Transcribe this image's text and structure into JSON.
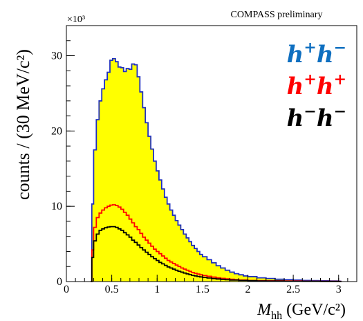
{
  "chart_data": {
    "type": "histogram",
    "preliminary_label": "COMPASS preliminary",
    "ylabel": "counts / (30 MeV/c²)",
    "xlabel_main": "M",
    "xlabel_sub": "hh",
    "xlabel_unit": "(GeV/c²)",
    "y_multiplier": "×10³",
    "xlim": [
      0,
      3.2
    ],
    "ylim": [
      0,
      34
    ],
    "x_ticks": [
      0,
      0.5,
      1,
      1.5,
      2,
      2.5,
      3
    ],
    "x_tick_labels": [
      "0",
      "0.5",
      "1",
      "1.5",
      "2",
      "2.5",
      "3"
    ],
    "y_ticks": [
      0,
      10,
      20,
      30
    ],
    "y_tick_labels": [
      "0",
      "10",
      "20",
      "30"
    ],
    "bin_width_gev": 0.03,
    "fill_color": "#ffff00",
    "series": [
      {
        "name": "h⁺h⁻",
        "color": "#1f2fbf",
        "filled": true,
        "points": [
          [
            0.27,
            0
          ],
          [
            0.28,
            10.3
          ],
          [
            0.3,
            17.5
          ],
          [
            0.33,
            21.5
          ],
          [
            0.36,
            24
          ],
          [
            0.39,
            25.6
          ],
          [
            0.42,
            26.8
          ],
          [
            0.45,
            27.8
          ],
          [
            0.48,
            29.4
          ],
          [
            0.51,
            29.6
          ],
          [
            0.54,
            29.2
          ],
          [
            0.57,
            28.5
          ],
          [
            0.6,
            28.4
          ],
          [
            0.63,
            27.9
          ],
          [
            0.66,
            28.3
          ],
          [
            0.69,
            28.2
          ],
          [
            0.72,
            28.9
          ],
          [
            0.75,
            28.8
          ],
          [
            0.78,
            27.2
          ],
          [
            0.81,
            25.2
          ],
          [
            0.84,
            23.1
          ],
          [
            0.87,
            21.1
          ],
          [
            0.9,
            19.3
          ],
          [
            0.93,
            17.6
          ],
          [
            0.96,
            16
          ],
          [
            0.99,
            14.7
          ],
          [
            1.02,
            13.5
          ],
          [
            1.05,
            12.3
          ],
          [
            1.08,
            11.2
          ],
          [
            1.11,
            10.3
          ],
          [
            1.14,
            9.5
          ],
          [
            1.17,
            8.8
          ],
          [
            1.2,
            8.1
          ],
          [
            1.23,
            7.5
          ],
          [
            1.26,
            6.9
          ],
          [
            1.29,
            6.3
          ],
          [
            1.32,
            5.8
          ],
          [
            1.35,
            5.3
          ],
          [
            1.38,
            4.8
          ],
          [
            1.41,
            4.4
          ],
          [
            1.44,
            4.0
          ],
          [
            1.47,
            3.6
          ],
          [
            1.5,
            3.3
          ],
          [
            1.55,
            2.9
          ],
          [
            1.6,
            2.5
          ],
          [
            1.65,
            2.1
          ],
          [
            1.7,
            1.8
          ],
          [
            1.75,
            1.5
          ],
          [
            1.8,
            1.25
          ],
          [
            1.85,
            1.05
          ],
          [
            1.9,
            0.9
          ],
          [
            1.95,
            0.75
          ],
          [
            2.0,
            0.65
          ],
          [
            2.1,
            0.5
          ],
          [
            2.2,
            0.4
          ],
          [
            2.3,
            0.3
          ],
          [
            2.4,
            0.25
          ],
          [
            2.5,
            0.2
          ],
          [
            2.6,
            0.15
          ],
          [
            2.7,
            0.12
          ],
          [
            2.8,
            0.1
          ],
          [
            2.9,
            0.08
          ],
          [
            3.0,
            0.05
          ]
        ]
      },
      {
        "name": "h⁺h⁺",
        "color": "#ff0000",
        "filled": false,
        "points": [
          [
            0.27,
            0
          ],
          [
            0.28,
            4.2
          ],
          [
            0.3,
            7.2
          ],
          [
            0.33,
            8.5
          ],
          [
            0.36,
            9.1
          ],
          [
            0.39,
            9.5
          ],
          [
            0.42,
            9.8
          ],
          [
            0.45,
            10.0
          ],
          [
            0.48,
            10.15
          ],
          [
            0.51,
            10.2
          ],
          [
            0.54,
            10.1
          ],
          [
            0.57,
            9.9
          ],
          [
            0.6,
            9.6
          ],
          [
            0.63,
            9.2
          ],
          [
            0.66,
            8.8
          ],
          [
            0.69,
            8.3
          ],
          [
            0.72,
            7.8
          ],
          [
            0.75,
            7.3
          ],
          [
            0.78,
            6.9
          ],
          [
            0.81,
            6.4
          ],
          [
            0.84,
            5.9
          ],
          [
            0.87,
            5.5
          ],
          [
            0.9,
            5.1
          ],
          [
            0.93,
            4.7
          ],
          [
            0.96,
            4.3
          ],
          [
            0.99,
            4.0
          ],
          [
            1.02,
            3.7
          ],
          [
            1.05,
            3.4
          ],
          [
            1.08,
            3.1
          ],
          [
            1.11,
            2.8
          ],
          [
            1.14,
            2.6
          ],
          [
            1.17,
            2.4
          ],
          [
            1.2,
            2.2
          ],
          [
            1.23,
            2.0
          ],
          [
            1.26,
            1.8
          ],
          [
            1.29,
            1.65
          ],
          [
            1.32,
            1.5
          ],
          [
            1.35,
            1.35
          ],
          [
            1.38,
            1.2
          ],
          [
            1.41,
            1.1
          ],
          [
            1.44,
            1.0
          ],
          [
            1.47,
            0.9
          ],
          [
            1.5,
            0.8
          ],
          [
            1.55,
            0.7
          ],
          [
            1.6,
            0.6
          ],
          [
            1.65,
            0.5
          ],
          [
            1.7,
            0.42
          ],
          [
            1.75,
            0.35
          ],
          [
            1.8,
            0.3
          ],
          [
            1.85,
            0.25
          ],
          [
            1.9,
            0.2
          ],
          [
            2.0,
            0.15
          ],
          [
            2.1,
            0.12
          ],
          [
            2.2,
            0.1
          ],
          [
            2.4,
            0.07
          ],
          [
            2.6,
            0.05
          ],
          [
            2.8,
            0.03
          ],
          [
            3.0,
            0.02
          ]
        ]
      },
      {
        "name": "h⁻h⁻",
        "color": "#000000",
        "filled": false,
        "points": [
          [
            0.27,
            0
          ],
          [
            0.28,
            3.2
          ],
          [
            0.3,
            5.4
          ],
          [
            0.33,
            6.3
          ],
          [
            0.36,
            6.8
          ],
          [
            0.39,
            7.0
          ],
          [
            0.42,
            7.15
          ],
          [
            0.45,
            7.25
          ],
          [
            0.48,
            7.3
          ],
          [
            0.51,
            7.3
          ],
          [
            0.54,
            7.2
          ],
          [
            0.57,
            7.0
          ],
          [
            0.6,
            6.8
          ],
          [
            0.63,
            6.5
          ],
          [
            0.66,
            6.2
          ],
          [
            0.69,
            5.9
          ],
          [
            0.72,
            5.5
          ],
          [
            0.75,
            5.2
          ],
          [
            0.78,
            4.85
          ],
          [
            0.81,
            4.5
          ],
          [
            0.84,
            4.2
          ],
          [
            0.87,
            3.9
          ],
          [
            0.9,
            3.6
          ],
          [
            0.93,
            3.3
          ],
          [
            0.96,
            3.05
          ],
          [
            0.99,
            2.8
          ],
          [
            1.02,
            2.55
          ],
          [
            1.05,
            2.35
          ],
          [
            1.08,
            2.15
          ],
          [
            1.11,
            1.95
          ],
          [
            1.14,
            1.8
          ],
          [
            1.17,
            1.65
          ],
          [
            1.2,
            1.5
          ],
          [
            1.23,
            1.37
          ],
          [
            1.26,
            1.25
          ],
          [
            1.29,
            1.13
          ],
          [
            1.32,
            1.02
          ],
          [
            1.35,
            0.92
          ],
          [
            1.38,
            0.83
          ],
          [
            1.41,
            0.75
          ],
          [
            1.44,
            0.68
          ],
          [
            1.47,
            0.62
          ],
          [
            1.5,
            0.55
          ],
          [
            1.55,
            0.47
          ],
          [
            1.6,
            0.4
          ],
          [
            1.65,
            0.34
          ],
          [
            1.7,
            0.29
          ],
          [
            1.75,
            0.24
          ],
          [
            1.8,
            0.2
          ],
          [
            1.9,
            0.15
          ],
          [
            2.0,
            0.11
          ],
          [
            2.1,
            0.08
          ],
          [
            2.2,
            0.06
          ],
          [
            2.4,
            0.04
          ],
          [
            2.6,
            0.03
          ],
          [
            2.8,
            0.02
          ],
          [
            3.0,
            0.01
          ]
        ]
      }
    ],
    "legend_entries": [
      {
        "base": "h",
        "sup1": "+",
        "second": "h",
        "sup2": "−",
        "color": "#0f6fc0"
      },
      {
        "base": "h",
        "sup1": "+",
        "second": "h",
        "sup2": "+",
        "color": "#ff0000"
      },
      {
        "base": "h",
        "sup1": "−",
        "second": "h",
        "sup2": "−",
        "color": "#000000"
      }
    ]
  }
}
